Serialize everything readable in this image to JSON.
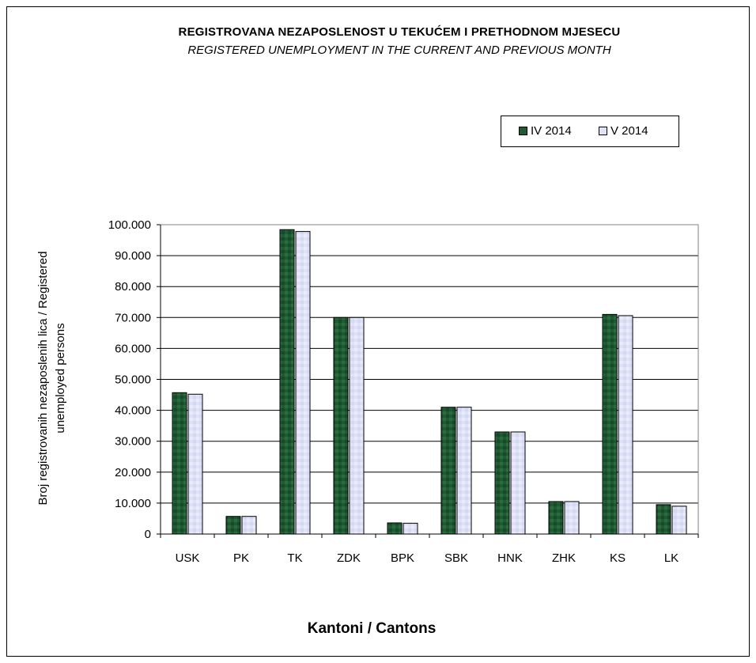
{
  "chart_data": {
    "type": "bar",
    "title": "REGISTROVANA NEZAPOSLENOST U TEKUĆEM I PRETHODNOM   MJESECU",
    "subtitle": "REGISTERED UNEMPLOYMENT IN THE CURRENT AND PREVIOUS MONTH",
    "xlabel": "Kantoni / Cantons",
    "ylabel_lines": [
      "Broj registrovanih nezaposlenih lica / Registered",
      "unemployed persons"
    ],
    "categories": [
      "USK",
      "PK",
      "TK",
      "ZDK",
      "BPK",
      "SBK",
      "HNK",
      "ZHK",
      "KS",
      "LK"
    ],
    "series": [
      {
        "name": "IV 2014",
        "color": "#1e5a32",
        "values": [
          45700,
          5700,
          98400,
          70000,
          3600,
          41000,
          33000,
          10500,
          71000,
          9500
        ]
      },
      {
        "name": "V 2014",
        "color": "#dfe2f7",
        "values": [
          45200,
          5700,
          97800,
          70000,
          3500,
          41000,
          33000,
          10500,
          70600,
          9000
        ]
      }
    ],
    "ylim": [
      0,
      100000
    ],
    "yticks": [
      0,
      10000,
      20000,
      30000,
      40000,
      50000,
      60000,
      70000,
      80000,
      90000,
      100000
    ],
    "ytick_labels": [
      "0",
      "10.000",
      "20.000",
      "30.000",
      "40.000",
      "50.000",
      "60.000",
      "70.000",
      "80.000",
      "90.000",
      "100.000"
    ],
    "grid": true,
    "legend_position": "top-right"
  }
}
